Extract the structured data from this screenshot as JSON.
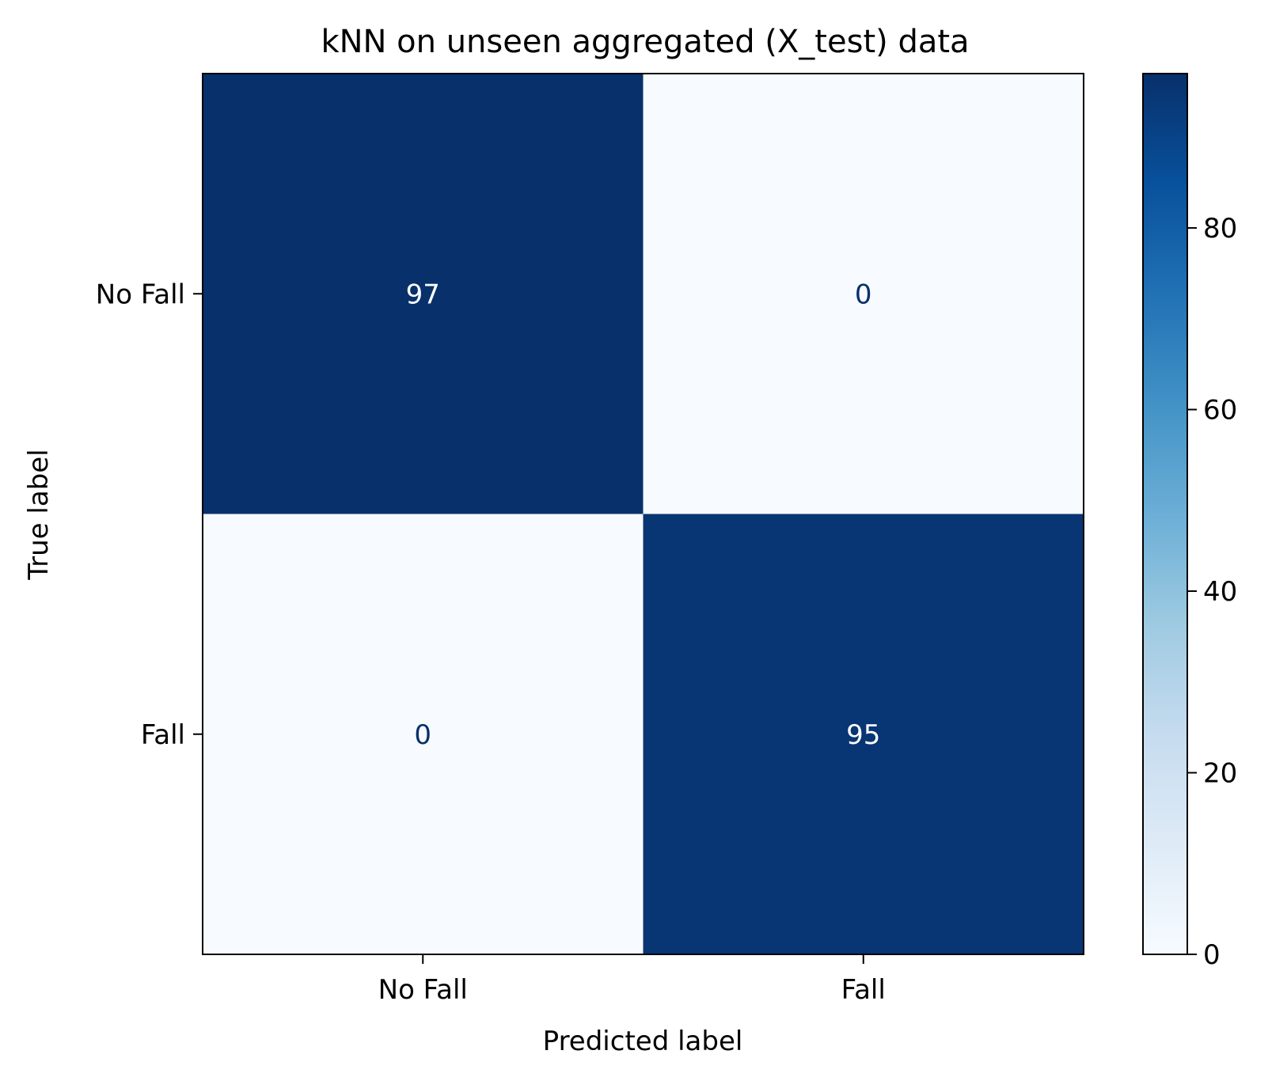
{
  "chart_data": {
    "type": "heatmap",
    "title": "kNN on unseen aggregated (X_test) data",
    "xlabel": "Predicted label",
    "ylabel": "True label",
    "x_categories": [
      "No Fall",
      "Fall"
    ],
    "y_categories": [
      "No Fall",
      "Fall"
    ],
    "values": [
      [
        97,
        0
      ],
      [
        0,
        95
      ]
    ],
    "colormap": "Blues",
    "color_low": "#f7fbff",
    "color_high": "#08306b",
    "text_color_dark": "#ffffff",
    "text_color_light": "#08306b",
    "colorbar": {
      "range": [
        0,
        97
      ],
      "ticks": [
        0,
        20,
        40,
        60,
        80
      ],
      "tick_labels": [
        "0",
        "20",
        "40",
        "60",
        "80"
      ]
    },
    "grid": false,
    "legend": "none"
  }
}
